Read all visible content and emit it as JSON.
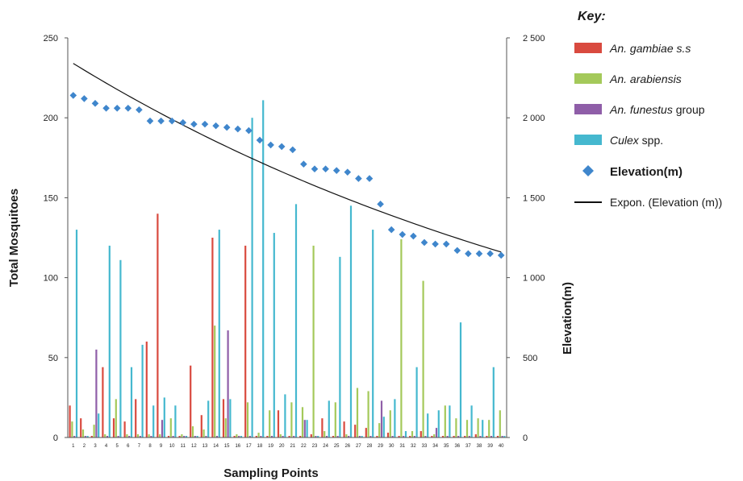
{
  "chart_data": {
    "type": "bar",
    "x_ticks": [
      "1",
      "2",
      "3",
      "4",
      "5",
      "6",
      "7",
      "8",
      "9",
      "10",
      "11",
      "12",
      "13",
      "14",
      "15",
      "16",
      "17",
      "18",
      "19",
      "20",
      "21",
      "22",
      "23",
      "24",
      "25",
      "26",
      "27",
      "28",
      "29",
      "30",
      "31",
      "32",
      "33",
      "34",
      "35",
      "36",
      "37",
      "38",
      "39",
      "40"
    ],
    "xlabel": "Sampling Points",
    "ylabel": "Total Mosquitoes",
    "y2label": "Elevation(m)",
    "ylim": [
      0,
      250
    ],
    "y2lim": [
      0,
      2500
    ],
    "y_ticks": [
      "0",
      "50",
      "100",
      "150",
      "200",
      "250"
    ],
    "y2_ticks": [
      "0",
      "500",
      "1 000",
      "1 500",
      "2 000",
      "2 500"
    ],
    "grid": false,
    "legend_position": "right",
    "legend_title": "Key:",
    "series": [
      {
        "name": "An. gambiae s.s",
        "italic_part": "An. gambiae s.s",
        "rest": "",
        "kind": "bar",
        "color": "#d94a3f",
        "values": [
          20,
          12,
          1,
          44,
          12,
          10,
          24,
          60,
          140,
          1,
          1,
          45,
          14,
          125,
          24,
          1,
          120,
          1,
          1,
          17,
          1,
          1,
          2,
          12,
          1,
          10,
          8,
          6,
          1,
          3,
          1,
          1,
          4,
          1,
          1,
          1,
          1,
          2,
          1,
          1
        ]
      },
      {
        "name": "An. arabiensis",
        "italic_part": "An. arabiensis",
        "rest": "",
        "kind": "bar",
        "color": "#a4c95a",
        "values": [
          10,
          5,
          8,
          2,
          24,
          2,
          2,
          2,
          2,
          12,
          2,
          7,
          5,
          70,
          12,
          2,
          22,
          3,
          17,
          2,
          22,
          19,
          120,
          4,
          22,
          2,
          31,
          29,
          9,
          17,
          124,
          4,
          98,
          2,
          20,
          12,
          11,
          12,
          11,
          17
        ]
      },
      {
        "name": "An. funestus group",
        "italic_part": "An. funestus",
        "rest": " group",
        "kind": "bar",
        "color": "#8f5ea8",
        "values": [
          1,
          1,
          55,
          1,
          1,
          1,
          1,
          1,
          11,
          1,
          1,
          1,
          1,
          1,
          67,
          1,
          1,
          1,
          1,
          1,
          1,
          11,
          1,
          1,
          1,
          1,
          1,
          1,
          23,
          1,
          1,
          1,
          1,
          6,
          1,
          1,
          1,
          1,
          1,
          1
        ]
      },
      {
        "name": "Culex spp.",
        "italic_part": "Culex",
        "rest": " spp.",
        "kind": "bar",
        "color": "#45b8cf",
        "values": [
          130,
          1,
          15,
          120,
          111,
          44,
          58,
          20,
          25,
          20,
          1,
          1,
          23,
          130,
          24,
          1,
          200,
          211,
          128,
          27,
          146,
          11,
          1,
          23,
          113,
          145,
          1,
          130,
          13,
          24,
          4,
          44,
          15,
          17,
          20,
          72,
          20,
          11,
          44,
          1
        ]
      },
      {
        "name": "Elevation(m)",
        "kind": "markers",
        "axis": "right",
        "color": "#3f86cc",
        "values": [
          2140,
          2120,
          2090,
          2060,
          2060,
          2060,
          2050,
          1980,
          1980,
          1980,
          1970,
          1960,
          1960,
          1950,
          1940,
          1930,
          1920,
          1860,
          1830,
          1820,
          1800,
          1710,
          1680,
          1680,
          1670,
          1660,
          1620,
          1620,
          1460,
          1300,
          1270,
          1260,
          1220,
          1210,
          1210,
          1170,
          1150,
          1150,
          1150,
          1140
        ]
      },
      {
        "name": "Expon. (Elevation (m))",
        "kind": "trendline",
        "axis": "right",
        "color": "#111111",
        "start": 2340,
        "end": 1160
      }
    ]
  }
}
